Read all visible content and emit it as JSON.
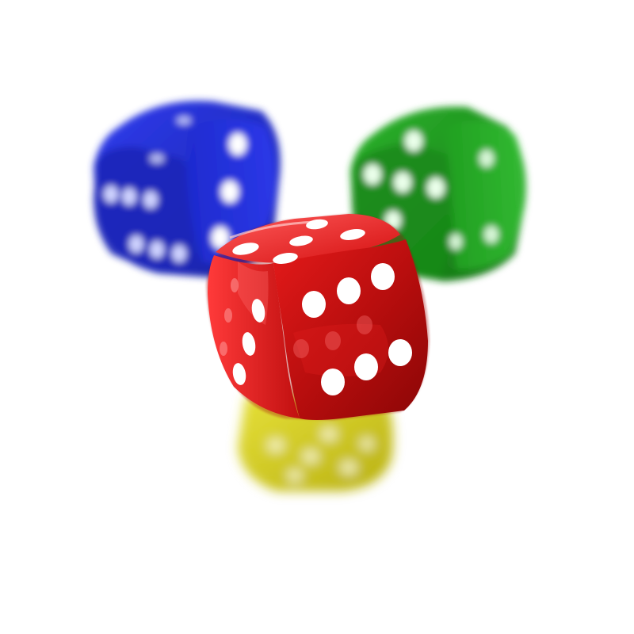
{
  "scene": {
    "background": "#ffffff",
    "dice": [
      {
        "name": "blue-die",
        "color": "#1f2fd6",
        "focus": "blurred",
        "visible_faces": [
          6,
          3
        ]
      },
      {
        "name": "green-die",
        "color": "#1a9a1a",
        "focus": "blurred",
        "visible_faces": [
          4,
          2
        ]
      },
      {
        "name": "yellow-die",
        "color": "#d8d21c",
        "focus": "heavily-blurred",
        "visible_faces": [
          5
        ]
      },
      {
        "name": "red-die",
        "color": "#d41414",
        "focus": "sharp",
        "visible_faces": [
          6,
          5,
          4
        ]
      }
    ],
    "pip_color": "#ffffff"
  }
}
